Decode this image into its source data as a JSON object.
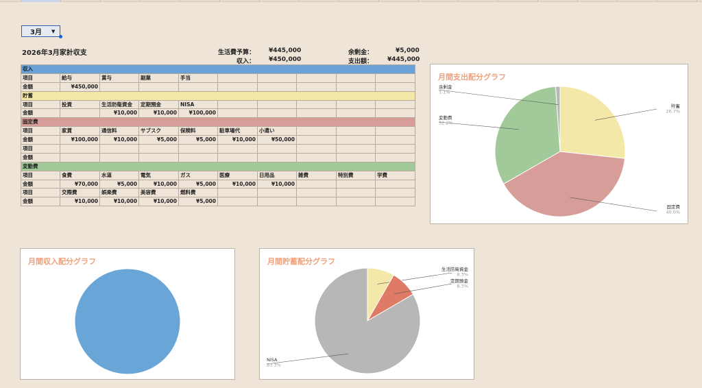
{
  "month_select": {
    "value": "3月"
  },
  "title": "2026年3月家計収支",
  "summary": {
    "budget_label": "生活費予算：",
    "budget_value": "¥445,000",
    "income_label": "収入：",
    "income_value": "¥450,000",
    "surplus_label": "余剰金：",
    "surplus_value": "¥5,000",
    "expense_label": "支出額：",
    "expense_value": "¥445,000"
  },
  "table": {
    "rows": [
      {
        "type": "sec-inc",
        "cells": [
          "収入"
        ]
      },
      {
        "type": "row",
        "cells": [
          "項目",
          "給与",
          "賞与",
          "副業",
          "手当",
          "",
          "",
          "",
          "",
          "",
          ""
        ]
      },
      {
        "type": "row",
        "num": true,
        "cells": [
          "金額",
          "¥450,000",
          "",
          "",
          "",
          "",
          "",
          "",
          "",
          "",
          ""
        ]
      },
      {
        "type": "sec-sav",
        "cells": [
          "貯蓄"
        ]
      },
      {
        "type": "row",
        "cells": [
          "項目",
          "投資",
          "生活防衛資金",
          "定期預金",
          "NISA",
          "",
          "",
          "",
          "",
          "",
          ""
        ]
      },
      {
        "type": "row",
        "num": true,
        "cells": [
          "金額",
          "",
          "¥10,000",
          "¥10,000",
          "¥100,000",
          "",
          "",
          "",
          "",
          "",
          ""
        ]
      },
      {
        "type": "sec-fix",
        "cells": [
          "固定費"
        ]
      },
      {
        "type": "row",
        "cells": [
          "項目",
          "家賃",
          "通信料",
          "サブスク",
          "保険料",
          "駐車場代",
          "小遣い",
          "",
          "",
          "",
          ""
        ]
      },
      {
        "type": "row",
        "num": true,
        "cells": [
          "金額",
          "¥100,000",
          "¥10,000",
          "¥5,000",
          "¥5,000",
          "¥10,000",
          "¥50,000",
          "",
          "",
          "",
          ""
        ]
      },
      {
        "type": "row",
        "cells": [
          "項目",
          "",
          "",
          "",
          "",
          "",
          "",
          "",
          "",
          "",
          ""
        ]
      },
      {
        "type": "row",
        "num": true,
        "cells": [
          "金額",
          "",
          "",
          "",
          "",
          "",
          "",
          "",
          "",
          "",
          ""
        ]
      },
      {
        "type": "sec-var",
        "cells": [
          "変動費"
        ]
      },
      {
        "type": "row",
        "cells": [
          "項目",
          "食費",
          "水道",
          "電気",
          "ガス",
          "医療",
          "日用品",
          "雑費",
          "特別費",
          "学費",
          ""
        ]
      },
      {
        "type": "row",
        "num": true,
        "cells": [
          "金額",
          "¥70,000",
          "¥5,000",
          "¥10,000",
          "¥5,000",
          "¥10,000",
          "¥10,000",
          "",
          "",
          "",
          ""
        ]
      },
      {
        "type": "row",
        "cells": [
          "項目",
          "交際費",
          "娯楽費",
          "美容費",
          "燃料費",
          "",
          "",
          "",
          "",
          "",
          ""
        ]
      },
      {
        "type": "row",
        "num": true,
        "cells": [
          "金額",
          "¥10,000",
          "¥10,000",
          "¥10,000",
          "¥5,000",
          "",
          "",
          "",
          "",
          "",
          ""
        ]
      }
    ]
  },
  "chart_data": [
    {
      "type": "pie",
      "title": "月間支出配分グラフ",
      "slices": [
        {
          "label": "貯蓄",
          "pct_label": "26.7%",
          "value": 26.7,
          "color": "#f4e8a8"
        },
        {
          "label": "固定費",
          "pct_label": "40.0%",
          "value": 40.0,
          "color": "#d79d98"
        },
        {
          "label": "変動費",
          "pct_label": "32.2%",
          "value": 32.2,
          "color": "#a2c99a"
        },
        {
          "label": "余剰金",
          "pct_label": "1.1%",
          "value": 1.1,
          "color": "#b7b7b7"
        }
      ]
    },
    {
      "type": "pie",
      "title": "月間収入配分グラフ",
      "slices": [
        {
          "label": "",
          "pct_label": "",
          "value": 100,
          "color": "#6aa5d8"
        }
      ]
    },
    {
      "type": "pie",
      "title": "月間貯蓄配分グラフ",
      "slices": [
        {
          "label": "生活防衛資金",
          "pct_label": "8.3%",
          "value": 8.3,
          "color": "#f4e8a8"
        },
        {
          "label": "定期預金",
          "pct_label": "8.3%",
          "value": 8.3,
          "color": "#df7a66"
        },
        {
          "label": "NISA",
          "pct_label": "83.3%",
          "value": 83.3,
          "color": "#b7b7b7"
        }
      ]
    }
  ]
}
